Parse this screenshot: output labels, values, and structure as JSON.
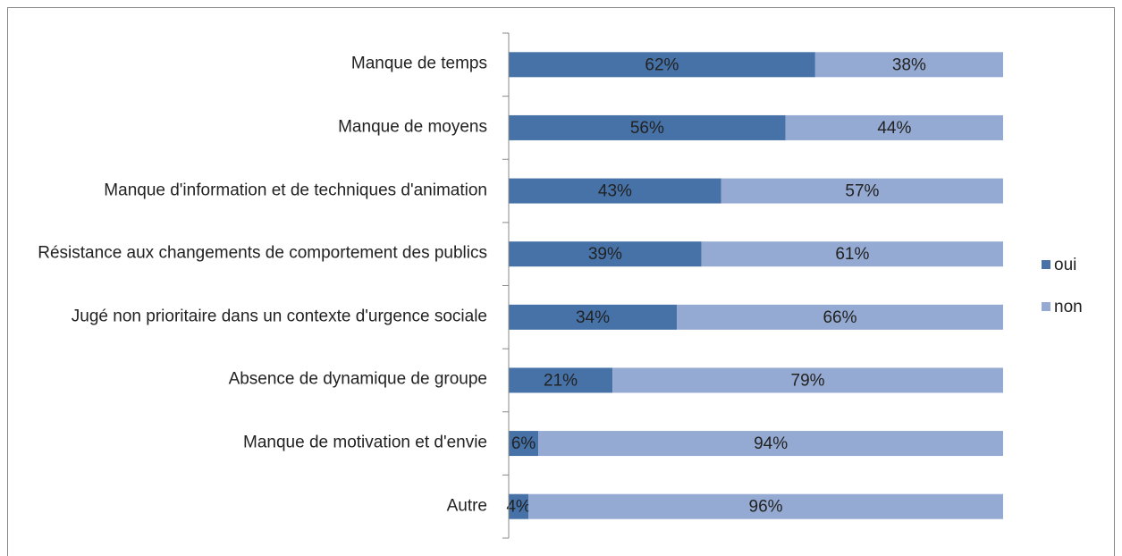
{
  "chart_data": {
    "type": "stacked_bar_horizontal",
    "categories": [
      "Manque de temps",
      "Manque de moyens",
      "Manque d'information et de techniques d'animation",
      "Résistance aux changements de comportement des publics",
      "Jugé non prioritaire dans un contexte d'urgence sociale",
      "Absence de dynamique de groupe",
      "Manque de motivation et d'envie",
      "Autre"
    ],
    "series": [
      {
        "name": "oui",
        "color": "#4672a8",
        "values": [
          62,
          56,
          43,
          39,
          34,
          21,
          6,
          4
        ],
        "value_labels": [
          "62%",
          "56%",
          "43%",
          "39%",
          "34%",
          "21%",
          "6%",
          "4%"
        ]
      },
      {
        "name": "non",
        "color": "#95aad2",
        "values": [
          38,
          44,
          57,
          61,
          66,
          79,
          94,
          96
        ],
        "value_labels": [
          "38%",
          "44%",
          "57%",
          "61%",
          "66%",
          "79%",
          "94%",
          "96%"
        ]
      }
    ],
    "xlim": [
      0,
      100
    ],
    "legend": "right"
  }
}
